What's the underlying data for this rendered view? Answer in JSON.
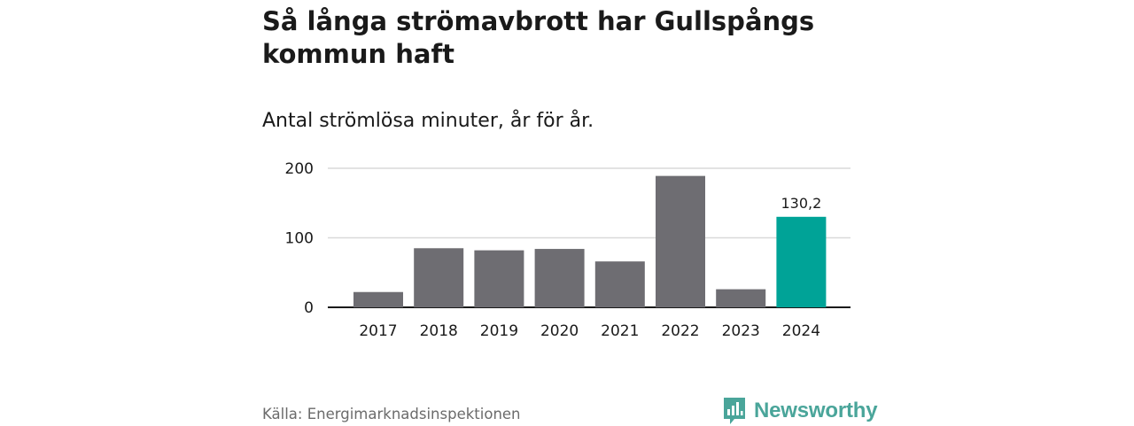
{
  "chart_data": {
    "type": "bar",
    "title": "Så långa strömavbrott har Gullspångs kommun haft",
    "subtitle": "Antal strömlösa minuter, år för år.",
    "xlabel": "",
    "ylabel": "",
    "categories": [
      "2017",
      "2018",
      "2019",
      "2020",
      "2021",
      "2022",
      "2023",
      "2024"
    ],
    "values": [
      22,
      85,
      82,
      84,
      66,
      189,
      26,
      130.2
    ],
    "highlight_index": 7,
    "data_labels": [
      {
        "index": 7,
        "text": "130,2"
      }
    ],
    "yticks": [
      0,
      100,
      200
    ],
    "ylim": [
      0,
      205
    ],
    "grid": true,
    "colors": {
      "bar": "#6e6d72",
      "highlight": "#00a397",
      "grid": "#d9d9d9",
      "axis": "#1a1a1a"
    }
  },
  "footer": {
    "source": "Källa: Energimarknadsinspektionen",
    "brand": "Newsworthy",
    "brand_color": "#4aa59a",
    "brand_icon": "newsworthy-logo-icon"
  }
}
